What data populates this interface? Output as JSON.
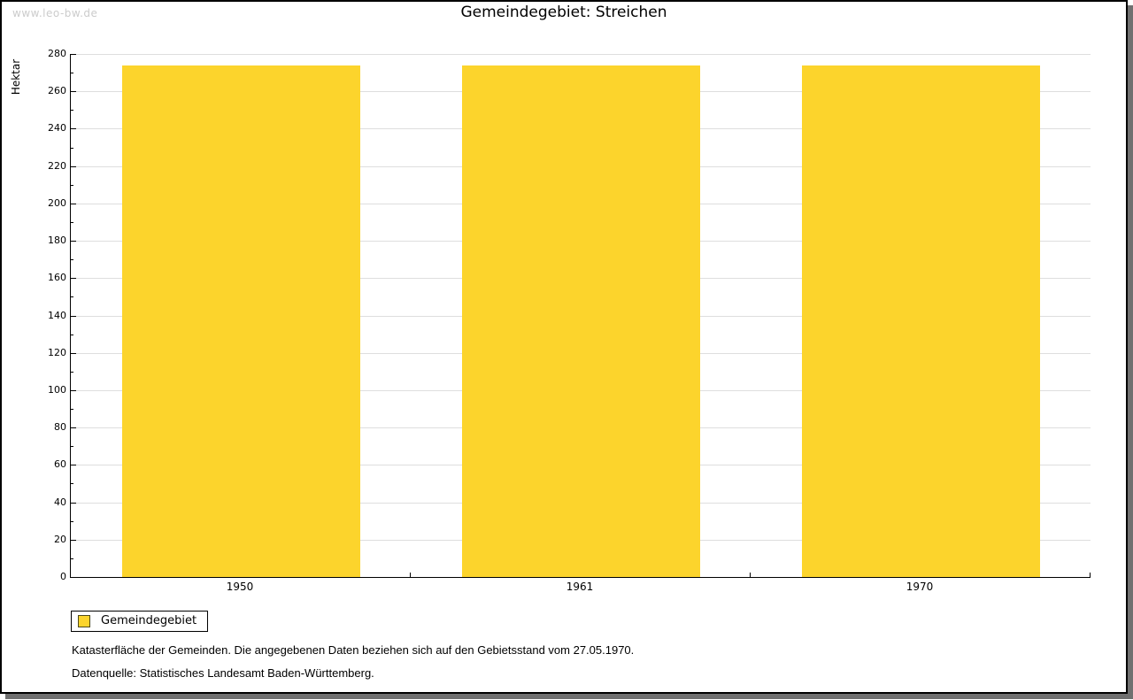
{
  "watermark": "www.leo-bw.de",
  "chart_data": {
    "type": "bar",
    "title": "Gemeindegebiet: Streichen",
    "categories": [
      "1950",
      "1961",
      "1970"
    ],
    "values": [
      274,
      274,
      274
    ],
    "series_name": "Gemeindegebiet",
    "xlabel": "",
    "ylabel": "Hektar",
    "ylim": [
      0,
      280
    ],
    "ytick_step": 20,
    "yminor_step": 10,
    "grid": true,
    "legend_position": "bottom-left"
  },
  "legend": {
    "label": "Gemeindegebiet"
  },
  "notes": {
    "line1": "Katasterfläche der Gemeinden. Die angegebenen Daten beziehen sich auf den Gebietsstand vom 27.05.1970.",
    "line2": "Datenquelle: Statistisches Landesamt Baden-Württemberg."
  },
  "colors": {
    "bar": "#fcd42c",
    "swatch_border": "#4f4a1a",
    "grid": "#dedede",
    "axis": "#000000",
    "watermark": "#cccccc",
    "frame_shadow": "#707070"
  }
}
